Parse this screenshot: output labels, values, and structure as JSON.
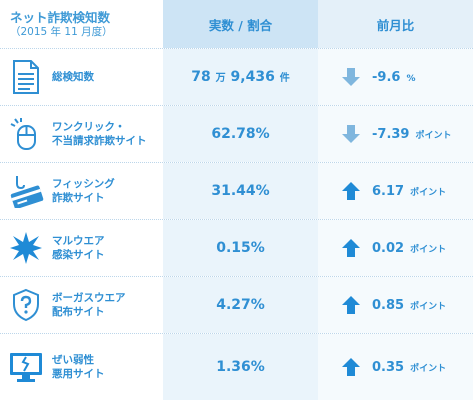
{
  "header": {
    "title": "ネット詐欺検知数",
    "subtitle": "（2015 年 11 月度）",
    "col_value": "実数 / 割合",
    "col_change": "前月比"
  },
  "rows": [
    {
      "icon": "document-icon",
      "label1": "総検知数",
      "label2": "",
      "value_main": "78",
      "value_small1": "万",
      "value_main2": "9,436",
      "value_small2": "件",
      "direction": "down",
      "change": "-9.6",
      "change_unit": "%"
    },
    {
      "icon": "mouse-click-icon",
      "label1": "ワンクリック・",
      "label2": "不当請求詐欺サイト",
      "value_main": "62.78%",
      "value_small1": "",
      "value_main2": "",
      "value_small2": "",
      "direction": "down",
      "change": "-7.39",
      "change_unit": "ポイント"
    },
    {
      "icon": "phishing-card-icon",
      "label1": "フィッシング",
      "label2": "詐欺サイト",
      "value_main": "31.44%",
      "value_small1": "",
      "value_main2": "",
      "value_small2": "",
      "direction": "up",
      "change": "6.17",
      "change_unit": "ポイント"
    },
    {
      "icon": "burst-icon",
      "label1": "マルウエア",
      "label2": "感染サイト",
      "value_main": "0.15%",
      "value_small1": "",
      "value_main2": "",
      "value_small2": "",
      "direction": "up",
      "change": "0.02",
      "change_unit": "ポイント"
    },
    {
      "icon": "shield-question-icon",
      "label1": "ボーガスウエア",
      "label2": "配布サイト",
      "value_main": "4.27%",
      "value_small1": "",
      "value_main2": "",
      "value_small2": "",
      "direction": "up",
      "change": "0.85",
      "change_unit": "ポイント"
    },
    {
      "icon": "broken-monitor-icon",
      "label1": "ぜい弱性",
      "label2": "悪用サイト",
      "value_main": "1.36%",
      "value_small1": "",
      "value_main2": "",
      "value_small2": "",
      "direction": "up",
      "change": "0.35",
      "change_unit": "ポイント"
    }
  ],
  "colors": {
    "accent": "#2f8fd3",
    "arrow_up": "#1f8ad6",
    "arrow_down": "#7fb6de",
    "header_mid_bg": "#cde4f5",
    "header_right_bg": "#e4f0f9"
  }
}
